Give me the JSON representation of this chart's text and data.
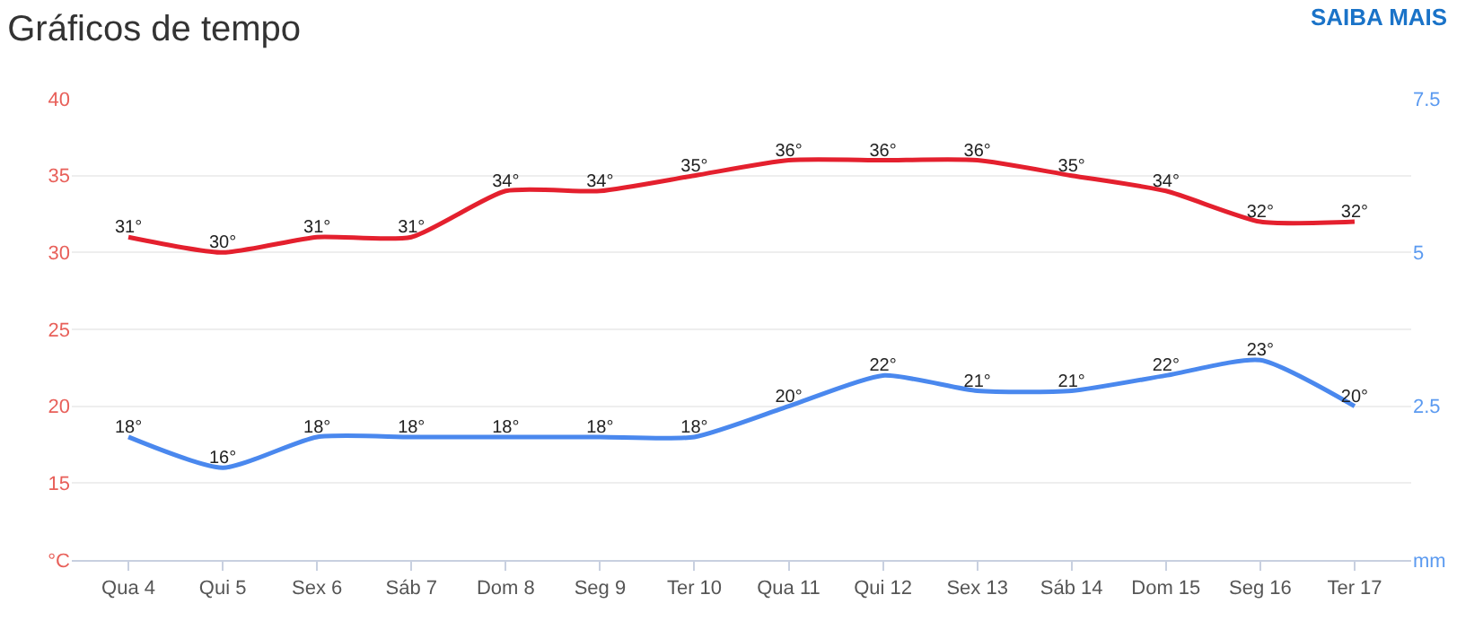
{
  "chart_data": {
    "type": "line",
    "title": "Gráficos de tempo",
    "annotations": [
      "SAIBA MAIS"
    ],
    "categories": [
      "Qua 4",
      "Qui 5",
      "Sex 6",
      "Sáb 7",
      "Dom 8",
      "Seg 9",
      "Ter 10",
      "Qua 11",
      "Qui 12",
      "Sex 13",
      "Sáb 14",
      "Dom 15",
      "Seg 16",
      "Ter 17"
    ],
    "series": [
      {
        "color": "#e4202e",
        "values": [
          31,
          30,
          31,
          31,
          34,
          34,
          35,
          36,
          36,
          36,
          35,
          34,
          32,
          32
        ],
        "value_labels": [
          "31°",
          "30°",
          "31°",
          "31°",
          "34°",
          "34°",
          "35°",
          "36°",
          "36°",
          "36°",
          "35°",
          "34°",
          "32°",
          "32°"
        ]
      },
      {
        "color": "#4a88ee",
        "values": [
          18,
          16,
          18,
          18,
          18,
          18,
          18,
          20,
          22,
          21,
          21,
          22,
          23,
          20
        ],
        "value_labels": [
          "18°",
          "16°",
          "18°",
          "18°",
          "18°",
          "18°",
          "18°",
          "20°",
          "22°",
          "21°",
          "21°",
          "22°",
          "23°",
          "20°"
        ]
      }
    ],
    "ylim": [
      10,
      40
    ],
    "yticks": [
      {
        "value": 10,
        "label": "°C"
      },
      15,
      20,
      25,
      30,
      35,
      40
    ],
    "y2lim": [
      0,
      7.5
    ],
    "y2ticks": [
      {
        "value": 0,
        "label": "mm"
      },
      2.5,
      5,
      7.5
    ],
    "grid": "y",
    "marker": "none",
    "line_style": "solid"
  }
}
